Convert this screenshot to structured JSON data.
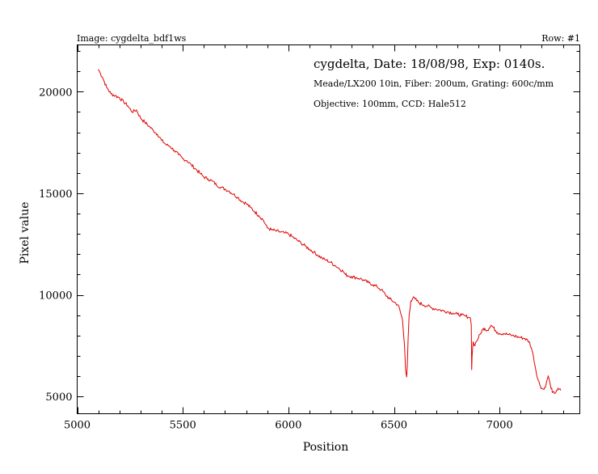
{
  "header": {
    "image_label": "Image: cygdelta_bdf1ws",
    "row_label": "Row: #1"
  },
  "annotations": {
    "line1": "cygdelta, Date: 18/08/98, Exp: 0140s.",
    "line2": "Meade/LX200 10in, Fiber: 200um, Grating: 600c/mm",
    "line3": "Objective: 100mm, CCD: Hale512"
  },
  "chart_data": {
    "type": "line",
    "xlabel": "Position",
    "ylabel": "Pixel value",
    "xlim": [
      5000,
      7380
    ],
    "ylim": [
      4150,
      22300
    ],
    "x_ticks": [
      5000,
      5500,
      6000,
      6500,
      7000
    ],
    "y_ticks": [
      5000,
      10000,
      15000,
      20000
    ],
    "grid": false,
    "line_color": "#e00000",
    "series": [
      {
        "x": [
          5100,
          5110,
          5120,
          5140,
          5160,
          5180,
          5200,
          5220,
          5240,
          5260,
          5280,
          5300,
          5320,
          5340,
          5360,
          5380,
          5400,
          5420,
          5440,
          5460,
          5480,
          5500,
          5520,
          5540,
          5560,
          5580,
          5600,
          5620,
          5640,
          5660,
          5680,
          5700,
          5720,
          5740,
          5760,
          5780,
          5800,
          5820,
          5840,
          5860,
          5880,
          5890,
          5900,
          5920,
          5940,
          5960,
          5980,
          6000,
          6020,
          6040,
          6060,
          6080,
          6100,
          6120,
          6140,
          6160,
          6180,
          6200,
          6220,
          6240,
          6260,
          6270,
          6280,
          6300,
          6320,
          6340,
          6360,
          6380,
          6400,
          6420,
          6440,
          6460,
          6480,
          6500,
          6520,
          6540,
          6550,
          6555,
          6560,
          6563,
          6567,
          6572,
          6580,
          6590,
          6600,
          6620,
          6640,
          6660,
          6680,
          6700,
          6720,
          6740,
          6760,
          6780,
          6800,
          6820,
          6840,
          6855,
          6862,
          6866,
          6868,
          6870,
          6875,
          6880,
          6890,
          6900,
          6910,
          6920,
          6930,
          6940,
          6950,
          6960,
          6970,
          6980,
          6990,
          7000,
          7020,
          7040,
          7060,
          7080,
          7100,
          7120,
          7140,
          7150,
          7160,
          7170,
          7180,
          7190,
          7200,
          7210,
          7220,
          7230,
          7240,
          7250,
          7260,
          7270,
          7280,
          7290
        ],
        "y": [
          21100,
          20900,
          20700,
          20200,
          19900,
          19800,
          19700,
          19500,
          19300,
          19000,
          19100,
          18700,
          18500,
          18300,
          18100,
          17900,
          17600,
          17400,
          17300,
          17100,
          16900,
          16700,
          16600,
          16400,
          16200,
          16000,
          15800,
          15700,
          15600,
          15400,
          15300,
          15200,
          15100,
          14950,
          14800,
          14600,
          14500,
          14300,
          14100,
          13900,
          13700,
          13500,
          13300,
          13200,
          13150,
          13100,
          13050,
          13000,
          12850,
          12700,
          12550,
          12400,
          12250,
          12100,
          11950,
          11800,
          11700,
          11600,
          11450,
          11300,
          11150,
          11000,
          10950,
          10900,
          10850,
          10800,
          10700,
          10600,
          10500,
          10400,
          10250,
          10000,
          9800,
          9650,
          9500,
          8800,
          7500,
          6300,
          5950,
          6500,
          7800,
          9000,
          9700,
          9850,
          9800,
          9600,
          9500,
          9450,
          9350,
          9300,
          9250,
          9200,
          9150,
          9100,
          9050,
          9000,
          8950,
          8900,
          8850,
          8500,
          6300,
          7000,
          7700,
          7500,
          7700,
          7900,
          8100,
          8300,
          8350,
          8250,
          8350,
          8500,
          8400,
          8250,
          8150,
          8100,
          8100,
          8050,
          8000,
          7950,
          7900,
          7850,
          7700,
          7400,
          7000,
          6400,
          5900,
          5600,
          5400,
          5350,
          5600,
          6000,
          5600,
          5200,
          5150,
          5300,
          5350,
          5300
        ]
      }
    ]
  }
}
